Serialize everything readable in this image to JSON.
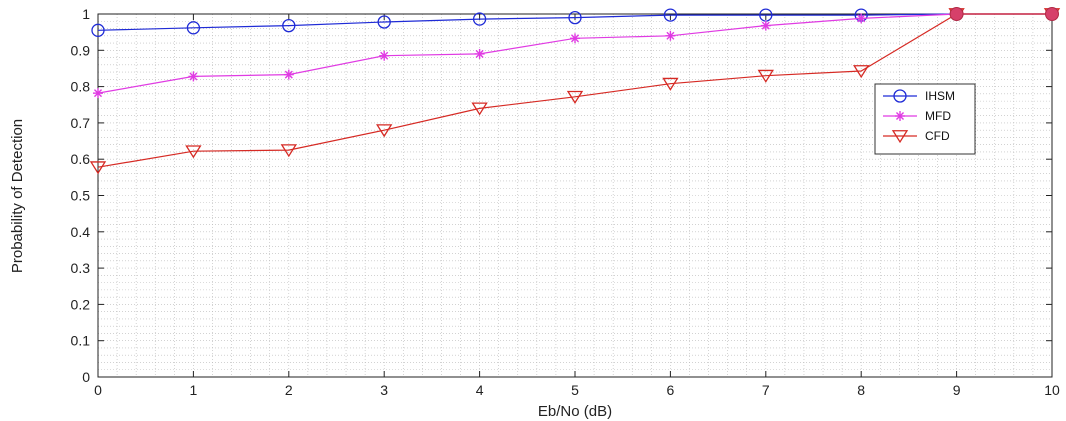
{
  "chart_data": {
    "type": "line",
    "title": "",
    "xlabel": "Eb/No (dB)",
    "ylabel": "Probability of Detection",
    "xlim": [
      0,
      10
    ],
    "ylim": [
      0,
      1
    ],
    "x_ticks": [
      "0",
      "1",
      "2",
      "3",
      "4",
      "5",
      "6",
      "7",
      "8",
      "9",
      "10"
    ],
    "y_ticks": [
      "0",
      "0.1",
      "0.2",
      "0.3",
      "0.4",
      "0.5",
      "0.6",
      "0.7",
      "0.8",
      "0.9",
      "1"
    ],
    "grid": "minor dotted",
    "legend_position": "right",
    "x": [
      0,
      1,
      2,
      3,
      4,
      5,
      6,
      7,
      8,
      9,
      10
    ],
    "series": [
      {
        "name": "IHSM",
        "color": "#1f2bd6",
        "marker": "circle",
        "values": [
          0.955,
          0.962,
          0.968,
          0.978,
          0.986,
          0.99,
          0.997,
          0.997,
          0.997,
          1.0,
          1.0
        ]
      },
      {
        "name": "MFD",
        "color": "#e03be3",
        "marker": "star",
        "values": [
          0.782,
          0.828,
          0.833,
          0.885,
          0.89,
          0.933,
          0.94,
          0.968,
          0.988,
          1.0,
          1.0
        ]
      },
      {
        "name": "CFD",
        "color": "#d62a24",
        "marker": "triangle-down",
        "values": [
          0.578,
          0.622,
          0.625,
          0.68,
          0.74,
          0.772,
          0.808,
          0.83,
          0.843,
          1.0,
          1.0
        ]
      }
    ]
  }
}
